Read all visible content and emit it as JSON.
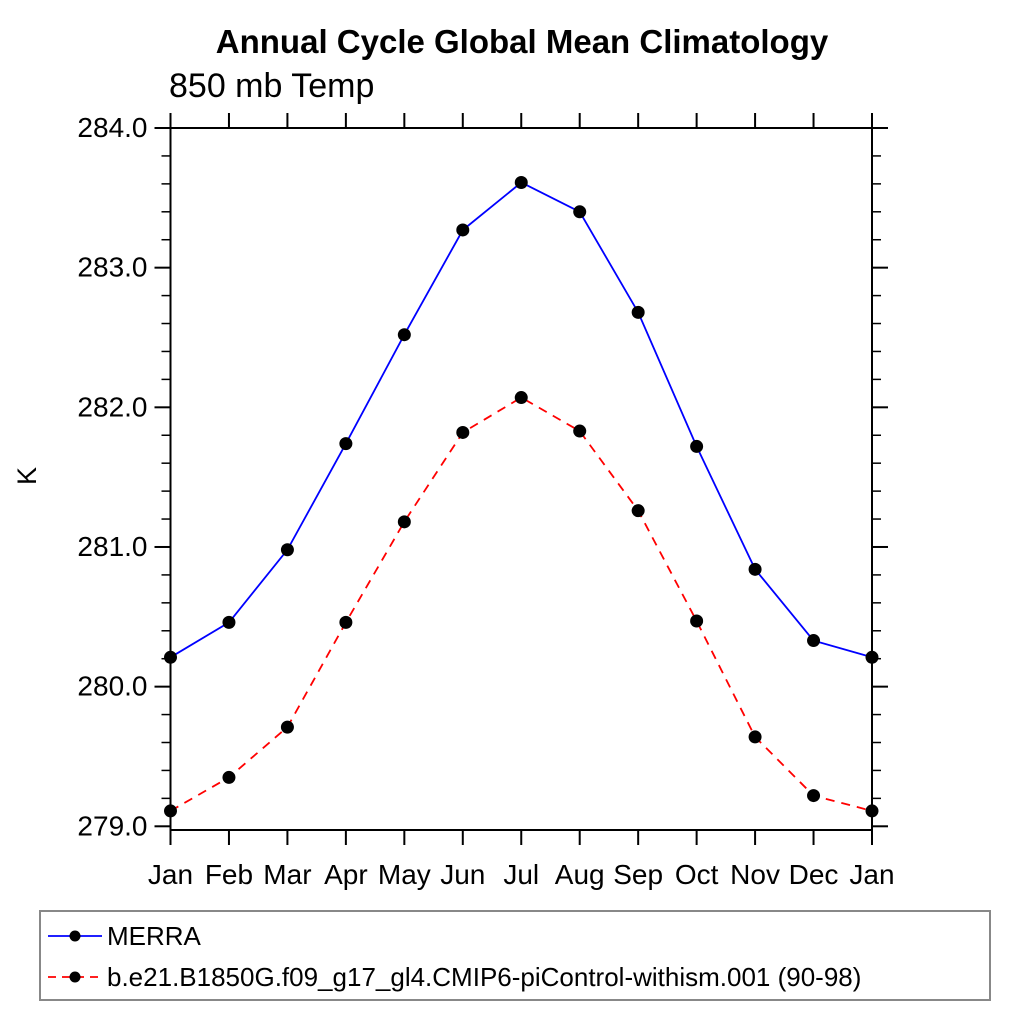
{
  "title": "Annual Cycle Global Mean Climatology",
  "subtitle": "850 mb Temp",
  "y_axis_label": "K",
  "legend": {
    "entries": [
      {
        "label": "MERRA",
        "color": "#0000ff",
        "style": "solid",
        "marker": "filled-circle"
      },
      {
        "label": "b.e21.B1850G.f09_g17_gl4.CMIP6-piControl-withism.001 (90-98)",
        "color": "#ff0000",
        "style": "dashed",
        "marker": "filled-circle"
      }
    ]
  },
  "chart_data": {
    "type": "line",
    "title": "Annual Cycle Global Mean Climatology",
    "subtitle": "850 mb Temp",
    "xlabel": "",
    "ylabel": "K",
    "categories": [
      "Jan",
      "Feb",
      "Mar",
      "Apr",
      "May",
      "Jun",
      "Jul",
      "Aug",
      "Sep",
      "Oct",
      "Nov",
      "Dec",
      "Jan"
    ],
    "series": [
      {
        "name": "MERRA",
        "color": "#0000ff",
        "line_style": "solid",
        "marker": "filled-circle",
        "marker_color": "#000000",
        "values": [
          280.21,
          280.46,
          280.98,
          281.74,
          282.52,
          283.27,
          283.61,
          283.4,
          282.68,
          281.72,
          280.84,
          280.33,
          280.21
        ]
      },
      {
        "name": "b.e21.B1850G.f09_g17_gl4.CMIP6-piControl-withism.001 (90-98)",
        "color": "#ff0000",
        "line_style": "dashed",
        "marker": "filled-circle",
        "marker_color": "#000000",
        "values": [
          279.11,
          279.35,
          279.71,
          280.46,
          281.18,
          281.82,
          282.07,
          281.83,
          281.26,
          280.47,
          279.64,
          279.22,
          279.11
        ]
      }
    ],
    "ylim": [
      278.97,
      284.0
    ],
    "yticks_major": [
      279.0,
      280.0,
      281.0,
      282.0,
      283.0,
      284.0
    ],
    "ytick_labels": [
      "279.0",
      "280.0",
      "281.0",
      "282.0",
      "283.0",
      "284.0"
    ],
    "y_minor_tick_interval": 0.2,
    "grid": false,
    "tick_style": "outward-mirrored",
    "legend_position": "bottom",
    "axis_color": "#000000",
    "marker_size_px": 13
  }
}
